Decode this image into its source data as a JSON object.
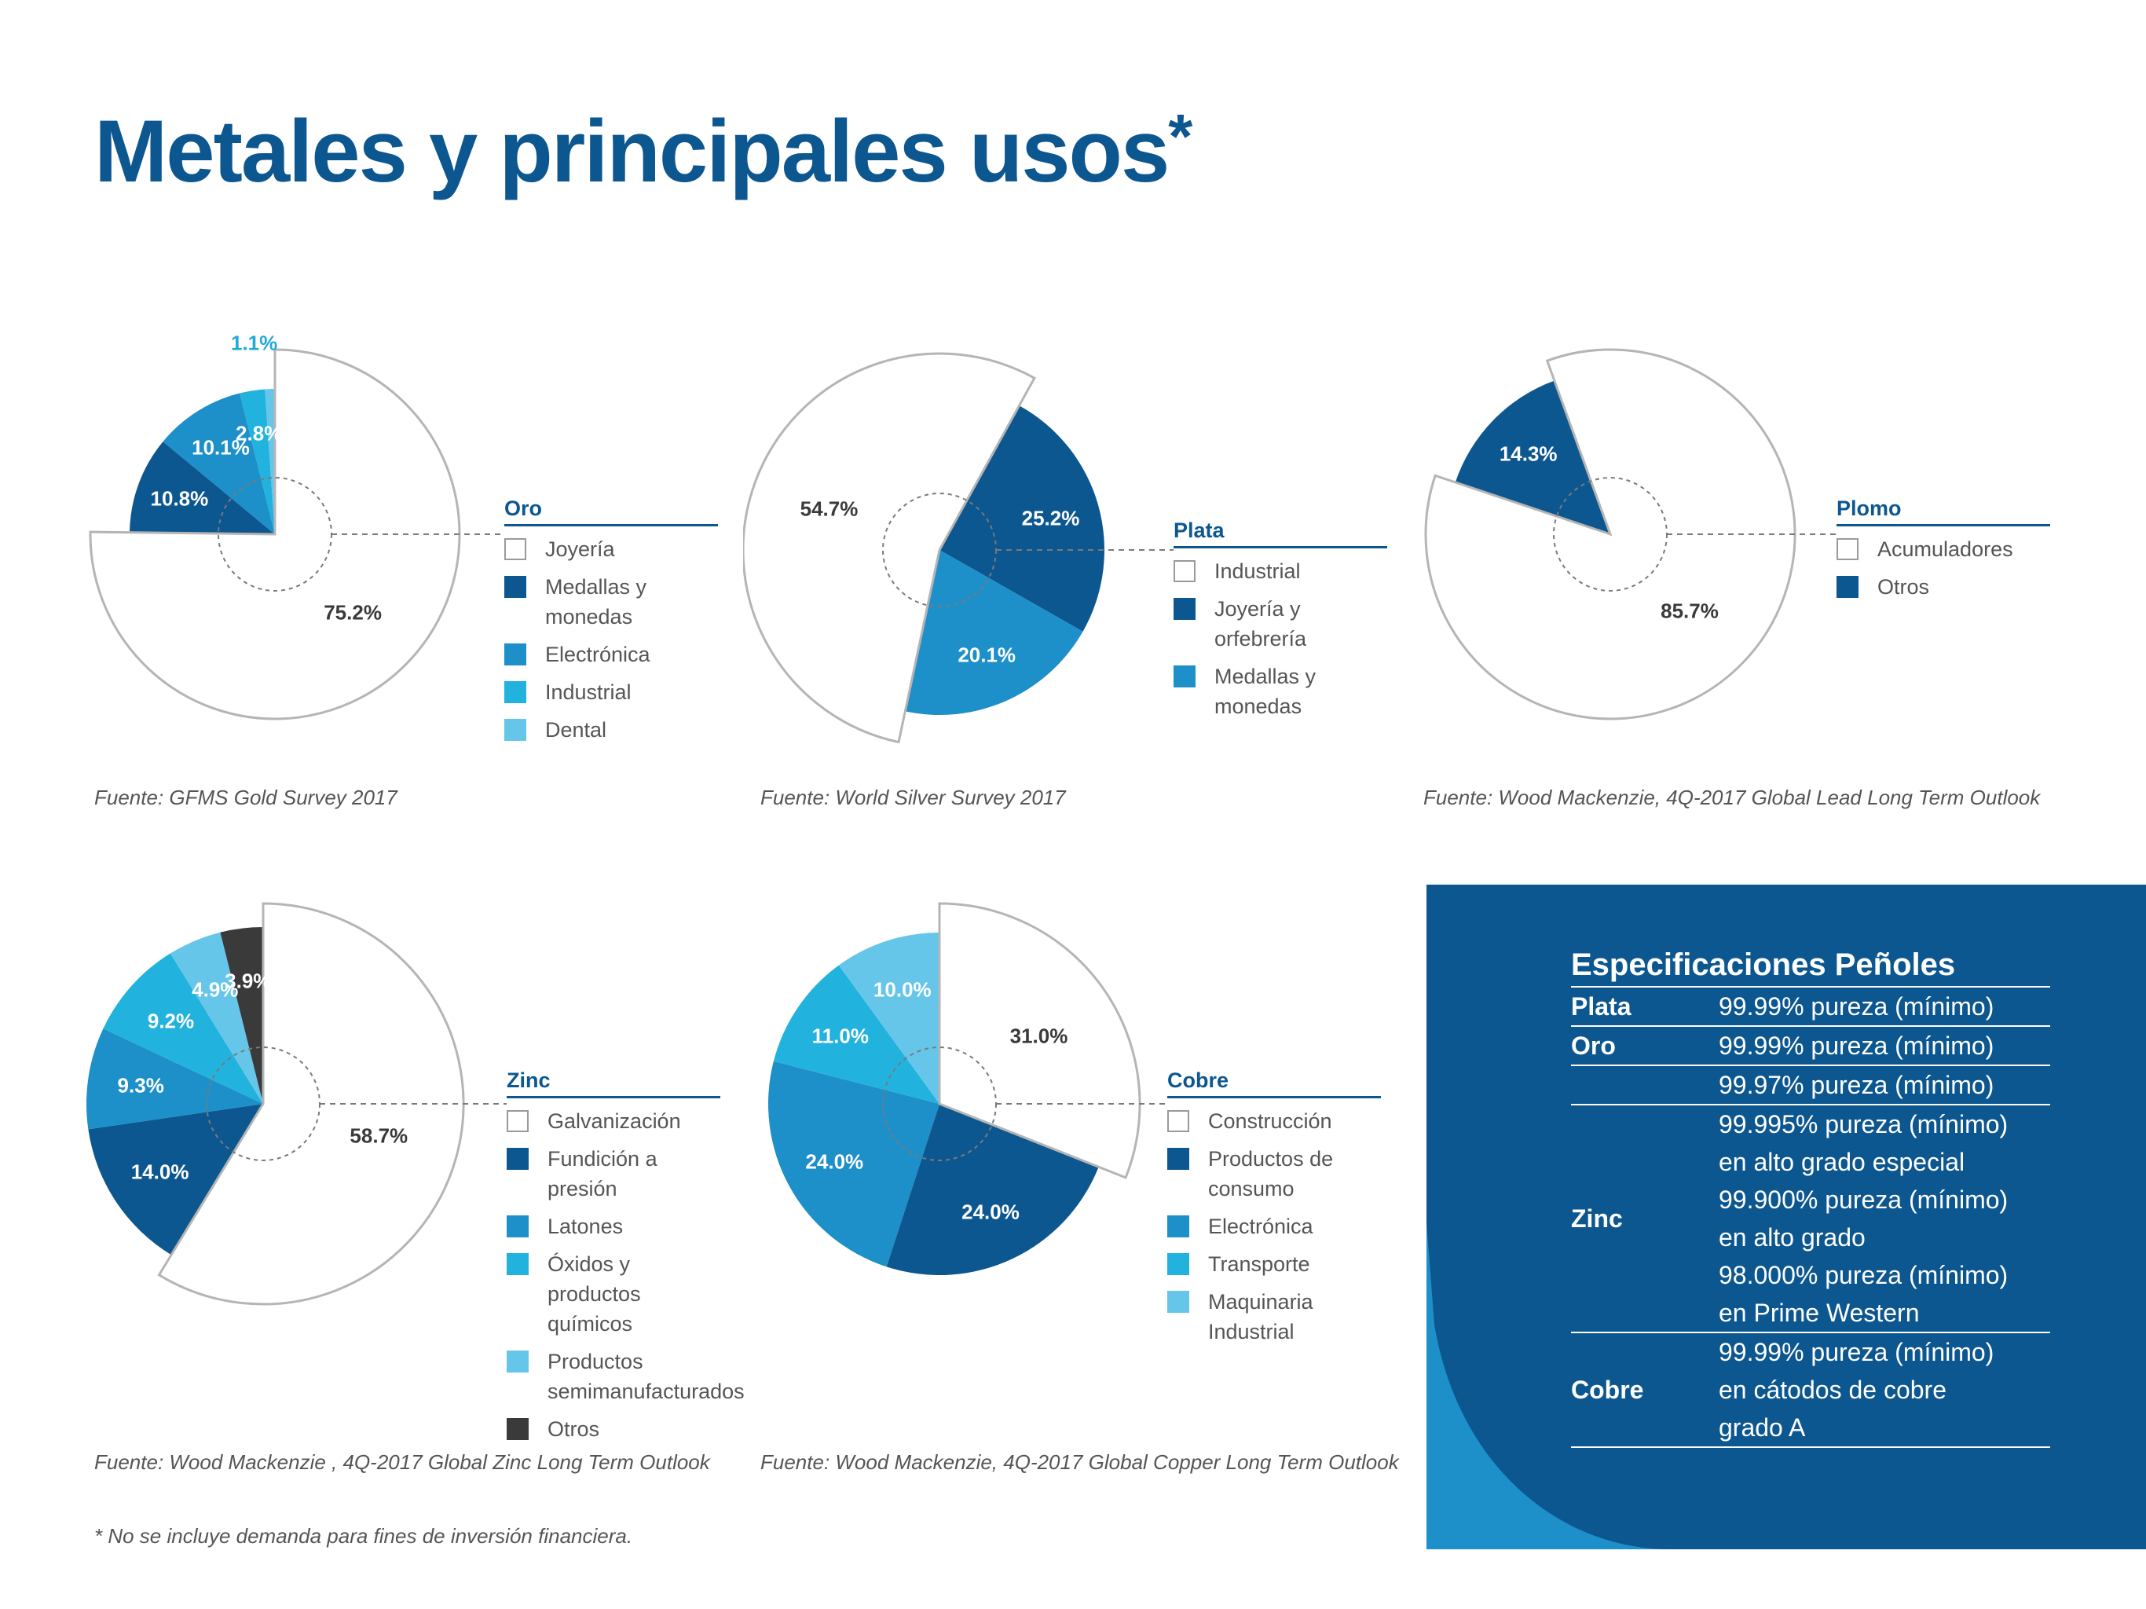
{
  "title": "Metales y principales usos",
  "title_mark": "*",
  "colors": {
    "navy": "#0d5790",
    "blue": "#1d8fc9",
    "cyan": "#22b2de",
    "light": "#65c6e9",
    "dark": "#3a3a3a",
    "white": "#ffffff"
  },
  "chart_data": [
    {
      "type": "pie",
      "name": "Oro",
      "source": "Fuente: GFMS Gold Survey 2017",
      "slices": [
        {
          "label": "Joyería",
          "value": 75.2,
          "value_label": "75.2%",
          "color": "#ffffff"
        },
        {
          "label": "Medallas y monedas",
          "value": 10.8,
          "value_label": "10.8%",
          "color": "#0d5790"
        },
        {
          "label": "Electrónica",
          "value": 10.1,
          "value_label": "10.1%",
          "color": "#1d8fc9"
        },
        {
          "label": "Industrial",
          "value": 2.8,
          "value_label": "2.8%",
          "color": "#22b2de"
        },
        {
          "label": "Dental",
          "value": 1.1,
          "value_label": "1.1%",
          "color": "#65c6e9"
        }
      ]
    },
    {
      "type": "pie",
      "name": "Plata",
      "source": "Fuente: World Silver Survey 2017",
      "slices": [
        {
          "label": "Industrial",
          "value": 54.7,
          "value_label": "54.7%",
          "color": "#ffffff"
        },
        {
          "label": "Joyería y orfebrería",
          "value": 25.2,
          "value_label": "25.2%",
          "color": "#0d5790"
        },
        {
          "label": "Medallas y monedas",
          "value": 20.1,
          "value_label": "20.1%",
          "color": "#1d8fc9"
        }
      ]
    },
    {
      "type": "pie",
      "name": "Plomo",
      "source": "Fuente: Wood Mackenzie, 4Q-2017 Global Lead Long Term Outlook",
      "slices": [
        {
          "label": "Acumuladores",
          "value": 85.7,
          "value_label": "85.7%",
          "color": "#ffffff"
        },
        {
          "label": "Otros",
          "value": 14.3,
          "value_label": "14.3%",
          "color": "#0d5790"
        }
      ]
    },
    {
      "type": "pie",
      "name": "Zinc",
      "source": "Fuente: Wood Mackenzie , 4Q-2017 Global Zinc Long Term Outlook",
      "slices": [
        {
          "label": "Galvanización",
          "value": 58.7,
          "value_label": "58.7%",
          "color": "#ffffff"
        },
        {
          "label": "Fundición a presión",
          "value": 14.0,
          "value_label": "14.0%",
          "color": "#0d5790"
        },
        {
          "label": "Latones",
          "value": 9.3,
          "value_label": "9.3%",
          "color": "#1d8fc9"
        },
        {
          "label": "Óxidos y productos químicos",
          "value": 9.2,
          "value_label": "9.2%",
          "color": "#22b2de"
        },
        {
          "label": "Productos semimanufacturados",
          "value": 4.9,
          "value_label": "4.9%",
          "color": "#65c6e9"
        },
        {
          "label": "Otros",
          "value": 3.9,
          "value_label": "3.9%",
          "color": "#3a3a3a"
        }
      ]
    },
    {
      "type": "pie",
      "name": "Cobre",
      "source": "Fuente: Wood Mackenzie, 4Q-2017 Global Copper Long Term Outlook",
      "slices": [
        {
          "label": "Construcción",
          "value": 31.0,
          "value_label": "31.0%",
          "color": "#ffffff"
        },
        {
          "label": "Productos de consumo",
          "value": 24.0,
          "value_label": "24.0%",
          "color": "#0d5790"
        },
        {
          "label": "Electrónica",
          "value": 24.0,
          "value_label": "24.0%",
          "color": "#1d8fc9"
        },
        {
          "label": "Transporte",
          "value": 11.0,
          "value_label": "11.0%",
          "color": "#22b2de"
        },
        {
          "label": "Maquinaria Industrial",
          "value": 10.0,
          "value_label": "10.0%",
          "color": "#65c6e9"
        }
      ]
    }
  ],
  "specs": {
    "title": "Especificaciones Peñoles",
    "rows": [
      {
        "metal": "Plata",
        "lines": [
          "99.99% pureza (mínimo)"
        ]
      },
      {
        "metal": "Oro",
        "lines": [
          "99.99% pureza (mínimo)"
        ]
      },
      {
        "metal": "",
        "lines": [
          "99.97% pureza (mínimo)"
        ]
      },
      {
        "metal": "Zinc",
        "lines": [
          "99.995% pureza (mínimo)",
          "en alto grado especial",
          "99.900% pureza (mínimo)",
          "en alto grado",
          "98.000% pureza (mínimo)",
          "en Prime Western"
        ]
      },
      {
        "metal": "Cobre",
        "lines": [
          "99.99% pureza (mínimo)",
          "en cátodos de cobre",
          "grado A"
        ]
      }
    ]
  },
  "footnote": "* No se incluye demanda para fines de inversión financiera."
}
